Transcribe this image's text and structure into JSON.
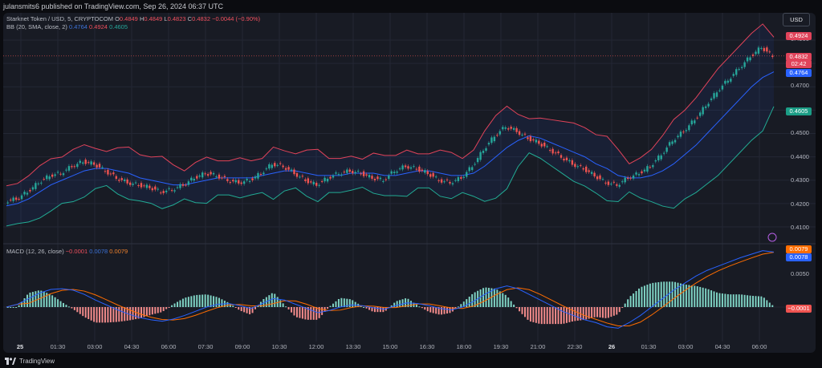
{
  "header": {
    "publisher_text": "julansmits6 published on TradingView.com, Sep 26, 2024 06:37 UTC"
  },
  "symbol": {
    "name": "Starknet Token / USD, 5, CRYPTOCOM",
    "o_label": "O",
    "o_value": "0.4849",
    "h_label": "H",
    "h_value": "0.4849",
    "l_label": "L",
    "l_value": "0.4823",
    "c_label": "C",
    "c_value": "0.4832",
    "change": "−0.0044 (−0.90%)"
  },
  "bb": {
    "label": "BB (20, SMA, close, 2)",
    "basis": "0.4764",
    "upper": "0.4924",
    "lower": "0.4605"
  },
  "macd": {
    "label": "MACD (12, 26, close)",
    "hist": "−0.0001",
    "macd": "0.0078",
    "signal": "0.0079"
  },
  "currency_button": "USD",
  "price_tags": {
    "upper": "0.4924",
    "last": "0.4832",
    "countdown": "02:42",
    "basis": "0.4764",
    "lower": "0.4605",
    "macd_signal": "0.0079",
    "macd_line": "0.0078",
    "hist": "−0.0001"
  },
  "y_axis": [
    "0.4900",
    "0.4800",
    "0.4700",
    "0.4600",
    "0.4500",
    "0.4400",
    "0.4300",
    "0.4200",
    "0.4100"
  ],
  "macd_axis": [
    "0.0050"
  ],
  "x_axis": [
    "25",
    "01:30",
    "03:00",
    "04:30",
    "06:00",
    "07:30",
    "09:00",
    "10:30",
    "12:00",
    "13:30",
    "15:00",
    "16:30",
    "18:00",
    "19:30",
    "21:00",
    "22:30",
    "26",
    "01:30",
    "03:00",
    "04:30",
    "06:00"
  ],
  "footer": {
    "brand": "TradingView"
  },
  "colors": {
    "up": "#26a69a",
    "down": "#ef5350",
    "basis": "#2962ff",
    "bands": "#e0435a",
    "lowerband": "#22ab94",
    "macd": "#2962ff",
    "signal": "#ff6d00",
    "panel": "#181b24"
  },
  "chart_data": {
    "type": "line",
    "series": [
      {
        "name": "Starknet Token / USD, 5, CRYPTOCOM",
        "values": [
          0.421,
          0.422,
          0.425,
          0.429,
          0.432,
          0.433,
          0.436,
          0.438,
          0.437,
          0.434,
          0.431,
          0.429,
          0.428,
          0.427,
          0.425,
          0.426,
          0.428,
          0.431,
          0.433,
          0.432,
          0.43,
          0.429,
          0.43,
          0.433,
          0.437,
          0.436,
          0.433,
          0.43,
          0.428,
          0.431,
          0.433,
          0.434,
          0.433,
          0.431,
          0.43,
          0.434,
          0.436,
          0.435,
          0.433,
          0.43,
          0.429,
          0.431,
          0.436,
          0.443,
          0.449,
          0.453,
          0.451,
          0.448,
          0.446,
          0.443,
          0.44,
          0.437,
          0.435,
          0.432,
          0.429,
          0.428,
          0.431,
          0.433,
          0.436,
          0.441,
          0.447,
          0.451,
          0.456,
          0.462,
          0.468,
          0.473,
          0.478,
          0.483,
          0.487,
          0.4832
        ]
      },
      {
        "name": "BB (20, SMA, close, 2)",
        "values": [
          0.419,
          0.42,
          0.422,
          0.425,
          0.428,
          0.43,
          0.432,
          0.434,
          0.435,
          0.435,
          0.434,
          0.433,
          0.431,
          0.43,
          0.429,
          0.428,
          0.428,
          0.429,
          0.43,
          0.431,
          0.431,
          0.431,
          0.431,
          0.432,
          0.433,
          0.434,
          0.434,
          0.433,
          0.432,
          0.432,
          0.432,
          0.433,
          0.433,
          0.433,
          0.432,
          0.432,
          0.433,
          0.434,
          0.434,
          0.433,
          0.432,
          0.432,
          0.433,
          0.436,
          0.44,
          0.444,
          0.447,
          0.449,
          0.448,
          0.446,
          0.444,
          0.442,
          0.44,
          0.437,
          0.435,
          0.432,
          0.431,
          0.431,
          0.432,
          0.434,
          0.437,
          0.441,
          0.445,
          0.45,
          0.455,
          0.46,
          0.465,
          0.47,
          0.474,
          0.4764
        ]
      },
      {
        "name": "MACD (12, 26, close)",
        "values": [
          0.0,
          0.0004,
          0.0012,
          0.002,
          0.0025,
          0.0026,
          0.0024,
          0.0018,
          0.001,
          0.0003,
          -0.0004,
          -0.001,
          -0.0015,
          -0.0018,
          -0.002,
          -0.0017,
          -0.0012,
          -0.0006,
          0.0,
          0.0004,
          0.0005,
          0.0002,
          -0.0002,
          0.0005,
          0.0012,
          0.001,
          0.0004,
          -0.0002,
          -0.0008,
          -0.0005,
          0.0,
          0.0003,
          0.0002,
          -0.0001,
          -0.0003,
          0.0002,
          0.0006,
          0.0005,
          0.0002,
          -0.0002,
          -0.0004,
          0.0,
          0.0008,
          0.0018,
          0.0026,
          0.003,
          0.0026,
          0.0018,
          0.001,
          0.0002,
          -0.0006,
          -0.0012,
          -0.0018,
          -0.0022,
          -0.0028,
          -0.003,
          -0.0022,
          -0.0012,
          0.0,
          0.0012,
          0.0024,
          0.0034,
          0.0044,
          0.0052,
          0.0058,
          0.0064,
          0.007,
          0.0075,
          0.008,
          0.0078
        ]
      }
    ]
  }
}
